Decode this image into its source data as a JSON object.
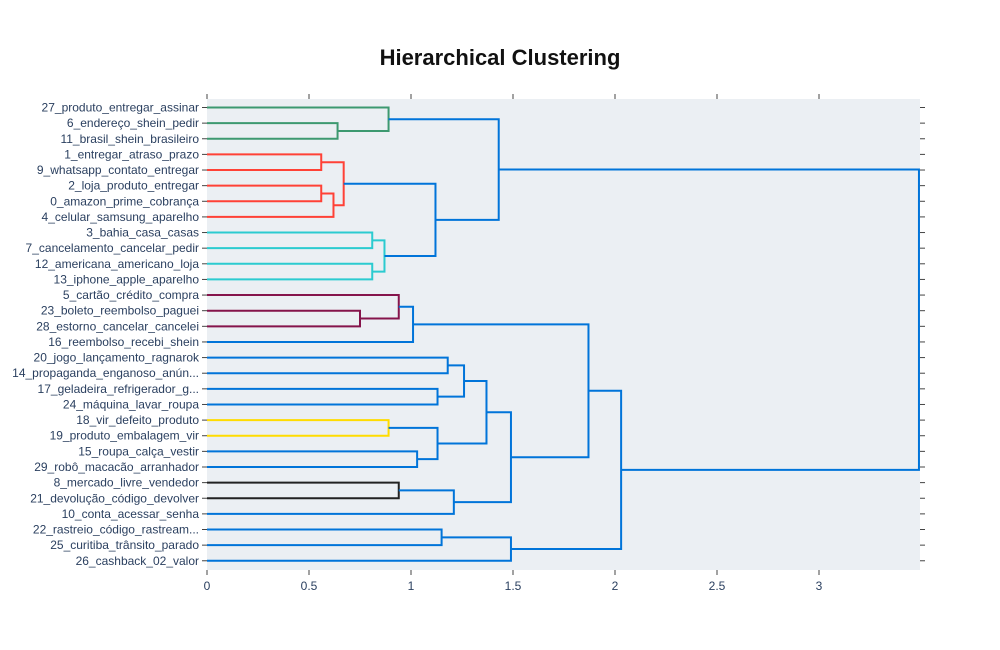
{
  "chart_data": {
    "type": "dendrogram",
    "orientation": "leaves-left",
    "title": "Hierarchical Clustering",
    "xlabel": "",
    "ylabel": "",
    "xlim": [
      0,
      3.5
    ],
    "x_ticks": [
      0,
      0.5,
      1,
      1.5,
      2,
      2.5,
      3
    ],
    "x_tick_labels": [
      "0",
      "0.5",
      "1",
      "1.5",
      "2",
      "2.5",
      "3"
    ],
    "grid": false,
    "legend": "none",
    "colors": {
      "plot_bg": "#ebeff3",
      "page_bg": "#ffffff",
      "green": "#3d9970",
      "red": "#ff4136",
      "cyan": "#2bcbd0",
      "maroon": "#85144b",
      "yellow": "#ffdc00",
      "black": "#222222",
      "above_threshold": "#0074d9"
    },
    "leaves": [
      "27_produto_entregar_assinar",
      "6_endereço_shein_pedir",
      "11_brasil_shein_brasileiro",
      "1_entregar_atraso_prazo",
      "9_whatsapp_contato_entregar",
      "2_loja_produto_entregar",
      "0_amazon_prime_cobrança",
      "4_celular_samsung_aparelho",
      "3_bahia_casa_casas",
      "7_cancelamento_cancelar_pedir",
      "12_americana_americano_loja",
      "13_iphone_apple_aparelho",
      "5_cartão_crédito_compra",
      "23_boleto_reembolso_paguei",
      "28_estorno_cancelar_cancelei",
      "16_reembolso_recebi_shein",
      "20_jogo_lançamento_ragnarok",
      "14_propaganda_enganoso_anún...",
      "17_geladeira_refrigerador_g...",
      "24_máquina_lavar_roupa",
      "18_vir_defeito_produto",
      "19_produto_embalagem_vir",
      "15_roupa_calça_vestir",
      "29_robô_macacão_arranhador",
      "8_mercado_livre_vendedor",
      "21_devolução_código_devolver",
      "10_conta_acessar_senha",
      "22_rastreio_código_rastream...",
      "25_curitiba_trânsito_parado",
      "26_cashback_02_valor"
    ],
    "merges": [
      {
        "a": "L1",
        "b": "L2",
        "height": 0.64,
        "color": "green"
      },
      {
        "a": "L0",
        "b": "M0",
        "height": 0.89,
        "color": "green"
      },
      {
        "a": "L3",
        "b": "L4",
        "height": 0.56,
        "color": "red"
      },
      {
        "a": "L5",
        "b": "L6",
        "height": 0.56,
        "color": "red"
      },
      {
        "a": "M3",
        "b": "L7",
        "height": 0.62,
        "color": "red"
      },
      {
        "a": "M2",
        "b": "M4",
        "height": 0.67,
        "color": "red"
      },
      {
        "a": "L8",
        "b": "L9",
        "height": 0.81,
        "color": "cyan"
      },
      {
        "a": "L10",
        "b": "L11",
        "height": 0.81,
        "color": "cyan"
      },
      {
        "a": "M6",
        "b": "M7",
        "height": 0.87,
        "color": "cyan"
      },
      {
        "a": "M5",
        "b": "M8",
        "height": 1.12,
        "color": "above_threshold"
      },
      {
        "a": "M1",
        "b": "M9",
        "height": 1.43,
        "color": "above_threshold"
      },
      {
        "a": "L13",
        "b": "L14",
        "height": 0.75,
        "color": "maroon"
      },
      {
        "a": "L12",
        "b": "M11",
        "height": 0.94,
        "color": "maroon"
      },
      {
        "a": "M12",
        "b": "L15",
        "height": 1.01,
        "color": "above_threshold"
      },
      {
        "a": "L16",
        "b": "L17",
        "height": 1.18,
        "color": "above_threshold"
      },
      {
        "a": "L18",
        "b": "L19",
        "height": 1.13,
        "color": "above_threshold"
      },
      {
        "a": "M14",
        "b": "M15",
        "height": 1.26,
        "color": "above_threshold"
      },
      {
        "a": "L20",
        "b": "L21",
        "height": 0.89,
        "color": "yellow"
      },
      {
        "a": "L22",
        "b": "L23",
        "height": 1.03,
        "color": "above_threshold"
      },
      {
        "a": "M17",
        "b": "M18",
        "height": 1.13,
        "color": "above_threshold"
      },
      {
        "a": "M16",
        "b": "M19",
        "height": 1.37,
        "color": "above_threshold"
      },
      {
        "a": "L24",
        "b": "L25",
        "height": 0.94,
        "color": "black"
      },
      {
        "a": "M21",
        "b": "L26",
        "height": 1.21,
        "color": "above_threshold"
      },
      {
        "a": "M20",
        "b": "M22",
        "height": 1.49,
        "color": "above_threshold"
      },
      {
        "a": "M13",
        "b": "M23",
        "height": 1.87,
        "color": "above_threshold"
      },
      {
        "a": "L27",
        "b": "L28",
        "height": 1.15,
        "color": "above_threshold"
      },
      {
        "a": "M25",
        "b": "L29",
        "height": 1.49,
        "color": "above_threshold"
      },
      {
        "a": "M24",
        "b": "M26",
        "height": 2.03,
        "color": "above_threshold"
      },
      {
        "a": "M10",
        "b": "M27",
        "height": 3.49,
        "color": "above_threshold"
      }
    ]
  }
}
